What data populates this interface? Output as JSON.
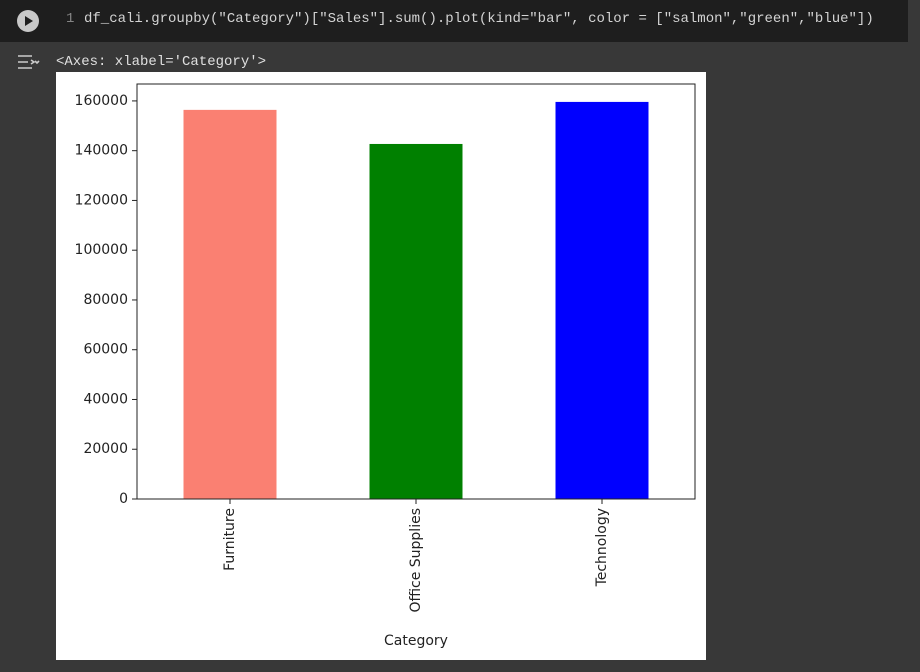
{
  "cell": {
    "line_number": "1",
    "code": "df_cali.groupby(\"Category\")[\"Sales\"].sum().plot(kind=\"bar\", color = [\"salmon\",\"green\",\"blue\"])"
  },
  "output": {
    "text": "<Axes: xlabel='Category'>"
  },
  "chart_data": {
    "type": "bar",
    "x_label": "Category",
    "categories": [
      "Furniture",
      "Office Supplies",
      "Technology"
    ],
    "values": [
      156400,
      142700,
      159600
    ],
    "colors": [
      "#fa8072",
      "#008000",
      "#0000ff"
    ],
    "ylim": [
      0,
      166800
    ],
    "yticks": [
      0,
      20000,
      40000,
      60000,
      80000,
      100000,
      120000,
      140000,
      160000
    ]
  }
}
